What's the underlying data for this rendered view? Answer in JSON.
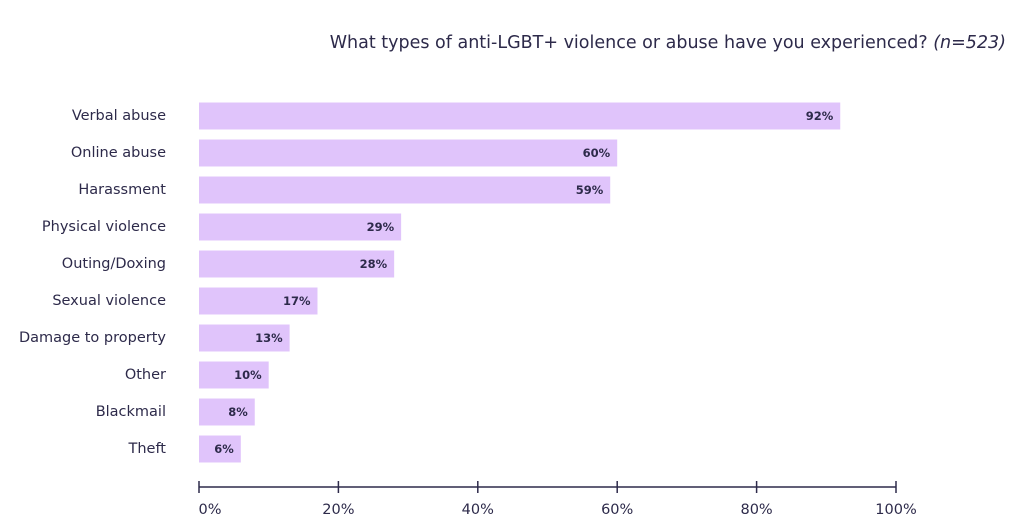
{
  "chart_data": {
    "type": "bar",
    "orientation": "horizontal",
    "title": "What types of anti-LGBT+ violence or abuse have you experienced?",
    "title_note": "(n=523)",
    "categories": [
      "Verbal abuse",
      "Online abuse",
      "Harassment",
      "Physical violence",
      "Outing/Doxing",
      "Sexual violence",
      "Damage to property",
      "Other",
      "Blackmail",
      "Theft"
    ],
    "values": [
      92,
      60,
      59,
      29,
      28,
      17,
      13,
      10,
      8,
      6
    ],
    "value_labels": [
      "92%",
      "60%",
      "59%",
      "29%",
      "28%",
      "17%",
      "13%",
      "10%",
      "8%",
      "6%"
    ],
    "xlim": [
      0,
      100
    ],
    "x_ticks": [
      0,
      20,
      40,
      60,
      80,
      100
    ],
    "x_tick_labels": [
      "0%",
      "20%",
      "40%",
      "60%",
      "80%",
      "100%"
    ],
    "xlabel": "",
    "ylabel": "",
    "grid": false,
    "legend": "none",
    "colors": {
      "bar": "#e0c4fb",
      "label_text": "#2d2a4a",
      "value_text": "#2d2a4a",
      "axis": "#2d2a4a"
    }
  }
}
